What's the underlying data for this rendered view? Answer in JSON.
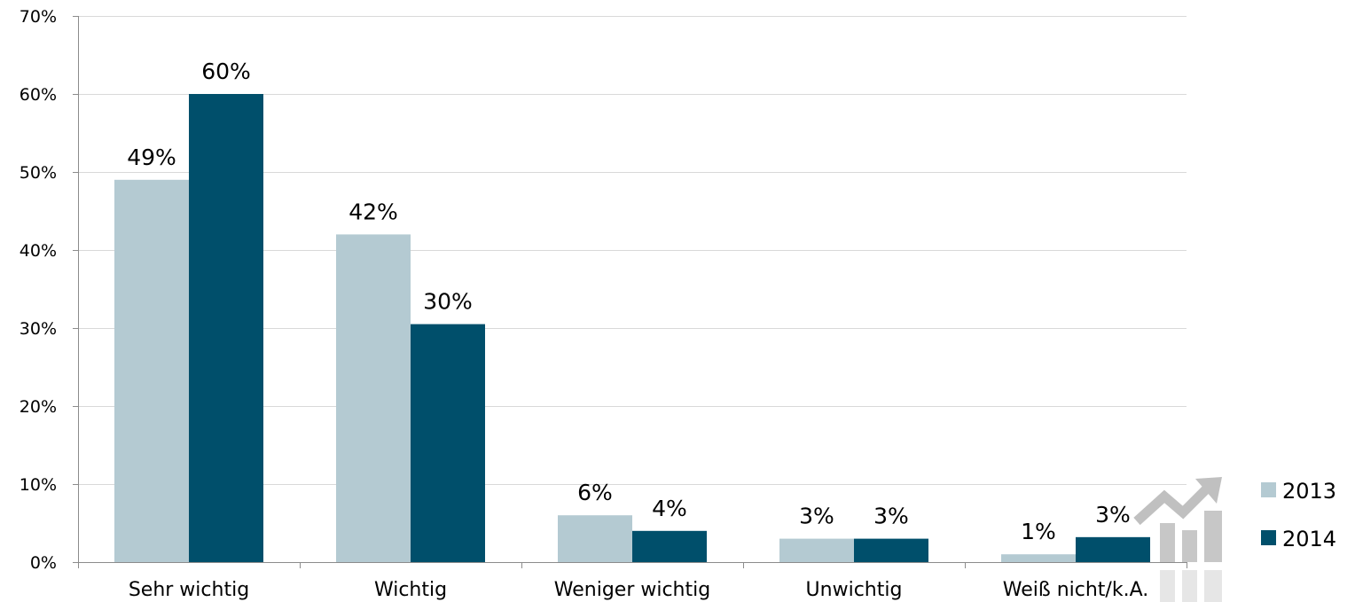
{
  "chart_data": {
    "type": "bar",
    "categories": [
      "Sehr wichtig",
      "Wichtig",
      "Weniger wichtig",
      "Unwichtig",
      "Weiß nicht/k.A."
    ],
    "series": [
      {
        "name": "2013",
        "values": [
          49,
          42,
          6,
          3,
          1
        ],
        "labels": [
          "49%",
          "42%",
          "6%",
          "3%",
          "1%"
        ],
        "color": "#b4cad2"
      },
      {
        "name": "2014",
        "values": [
          60,
          30.5,
          4,
          3,
          3.2
        ],
        "labels": [
          "60%",
          "30%",
          "4%",
          "3%",
          "3%"
        ],
        "color": "#004f6b"
      }
    ],
    "ylim": [
      0,
      70
    ],
    "yticks": [
      0,
      10,
      20,
      30,
      40,
      50,
      60,
      70
    ],
    "ytick_labels": [
      "0%",
      "10%",
      "20%",
      "30%",
      "40%",
      "50%",
      "60%",
      "70%"
    ],
    "grid": true,
    "legend": "right",
    "watermark_icon": "rising-bar-chart-arrow-icon"
  }
}
